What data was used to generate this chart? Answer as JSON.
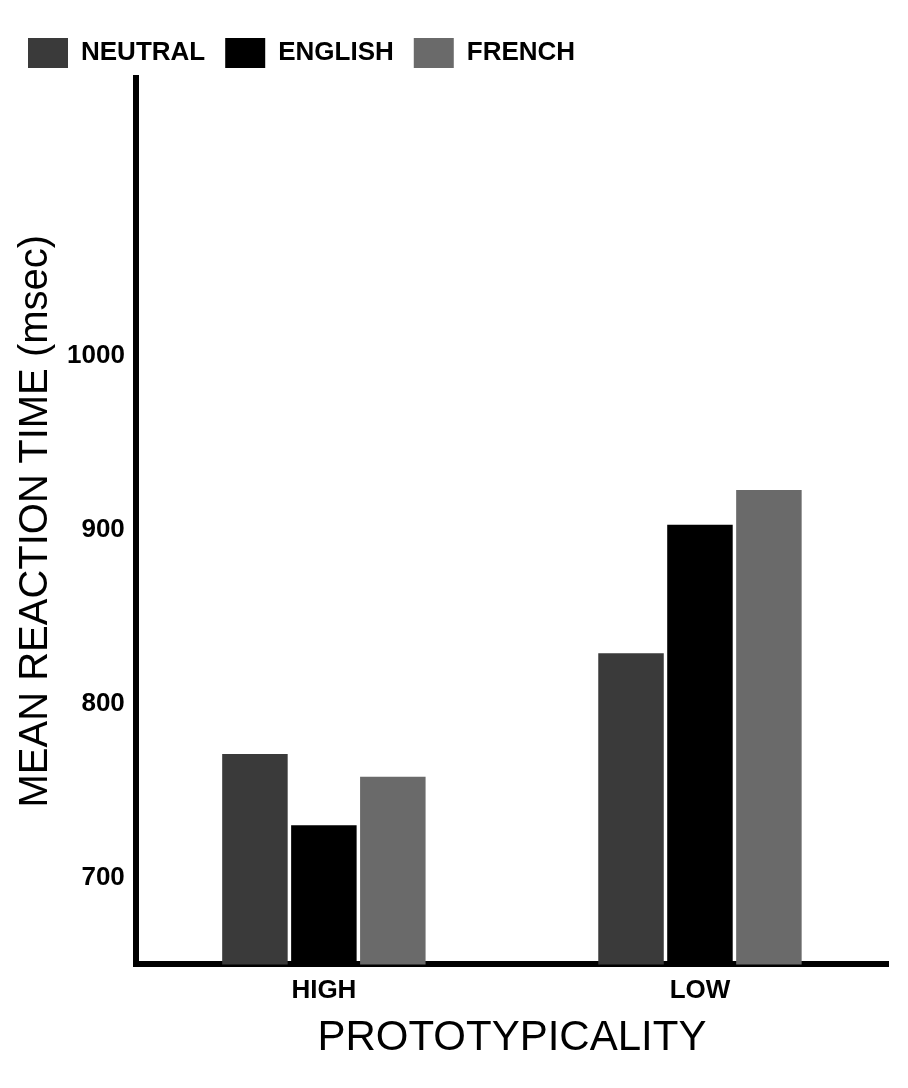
{
  "chart_data": {
    "type": "bar",
    "xlabel": "PROTOTYPICALITY",
    "ylabel": "MEAN REACTION TIME (msec)",
    "categories": [
      "HIGH",
      "LOW"
    ],
    "series": [
      {
        "name": "NEUTRAL",
        "color": "#3a3a3a",
        "values": [
          771,
          829
        ]
      },
      {
        "name": "ENGLISH",
        "color": "#000000",
        "values": [
          730,
          903
        ]
      },
      {
        "name": "FRENCH",
        "color": "#6a6a6a",
        "values": [
          758,
          923
        ]
      }
    ],
    "ylim": [
      650,
      1160
    ],
    "yticks": [
      700,
      800,
      900,
      1000
    ],
    "grid": false,
    "legend": "top left"
  }
}
